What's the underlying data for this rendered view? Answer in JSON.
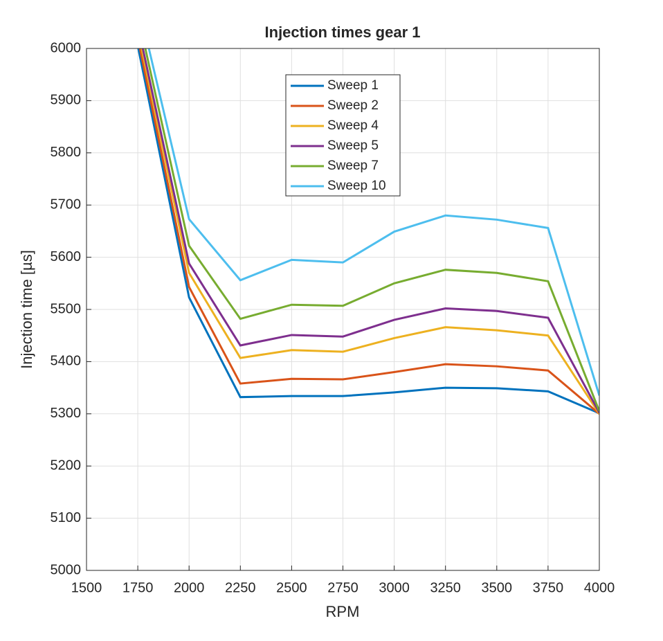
{
  "chart_data": {
    "type": "line",
    "title": "Injection times gear 1",
    "x_label": "RPM",
    "y_label": "Injection time [µs]",
    "x": [
      1750,
      2000,
      2250,
      2500,
      2750,
      3000,
      3250,
      3500,
      3750,
      4000
    ],
    "series": [
      {
        "name": "Sweep 1",
        "color": "#0072bd",
        "values": [
          6005,
          5523,
          5332,
          5334,
          5334,
          5341,
          5350,
          5349,
          5343,
          5301
        ]
      },
      {
        "name": "Sweep 2",
        "color": "#d95319",
        "values": [
          6020,
          5543,
          5358,
          5367,
          5366,
          5380,
          5395,
          5391,
          5383,
          5300
        ]
      },
      {
        "name": "Sweep 4",
        "color": "#edb120",
        "values": [
          6035,
          5570,
          5407,
          5422,
          5419,
          5445,
          5466,
          5460,
          5450,
          5300
        ]
      },
      {
        "name": "Sweep 5",
        "color": "#7e2f8e",
        "values": [
          6045,
          5588,
          5431,
          5451,
          5448,
          5480,
          5502,
          5497,
          5484,
          5302
        ]
      },
      {
        "name": "Sweep 7",
        "color": "#77ac30",
        "values": [
          6065,
          5622,
          5482,
          5509,
          5507,
          5550,
          5576,
          5570,
          5554,
          5305
        ]
      },
      {
        "name": "Sweep 10",
        "color": "#4dbeee",
        "values": [
          6090,
          5673,
          5556,
          5595,
          5590,
          5649,
          5680,
          5672,
          5656,
          5335
        ]
      }
    ],
    "xlim": [
      1500,
      4000
    ],
    "xticks": [
      1500,
      1750,
      2000,
      2250,
      2500,
      2750,
      3000,
      3250,
      3500,
      3750,
      4000
    ],
    "ylim": [
      5000,
      6000
    ],
    "yticks": [
      5000,
      5100,
      5200,
      5300,
      5400,
      5500,
      5600,
      5700,
      5800,
      5900,
      6000
    ],
    "grid": true,
    "legend": "top"
  }
}
